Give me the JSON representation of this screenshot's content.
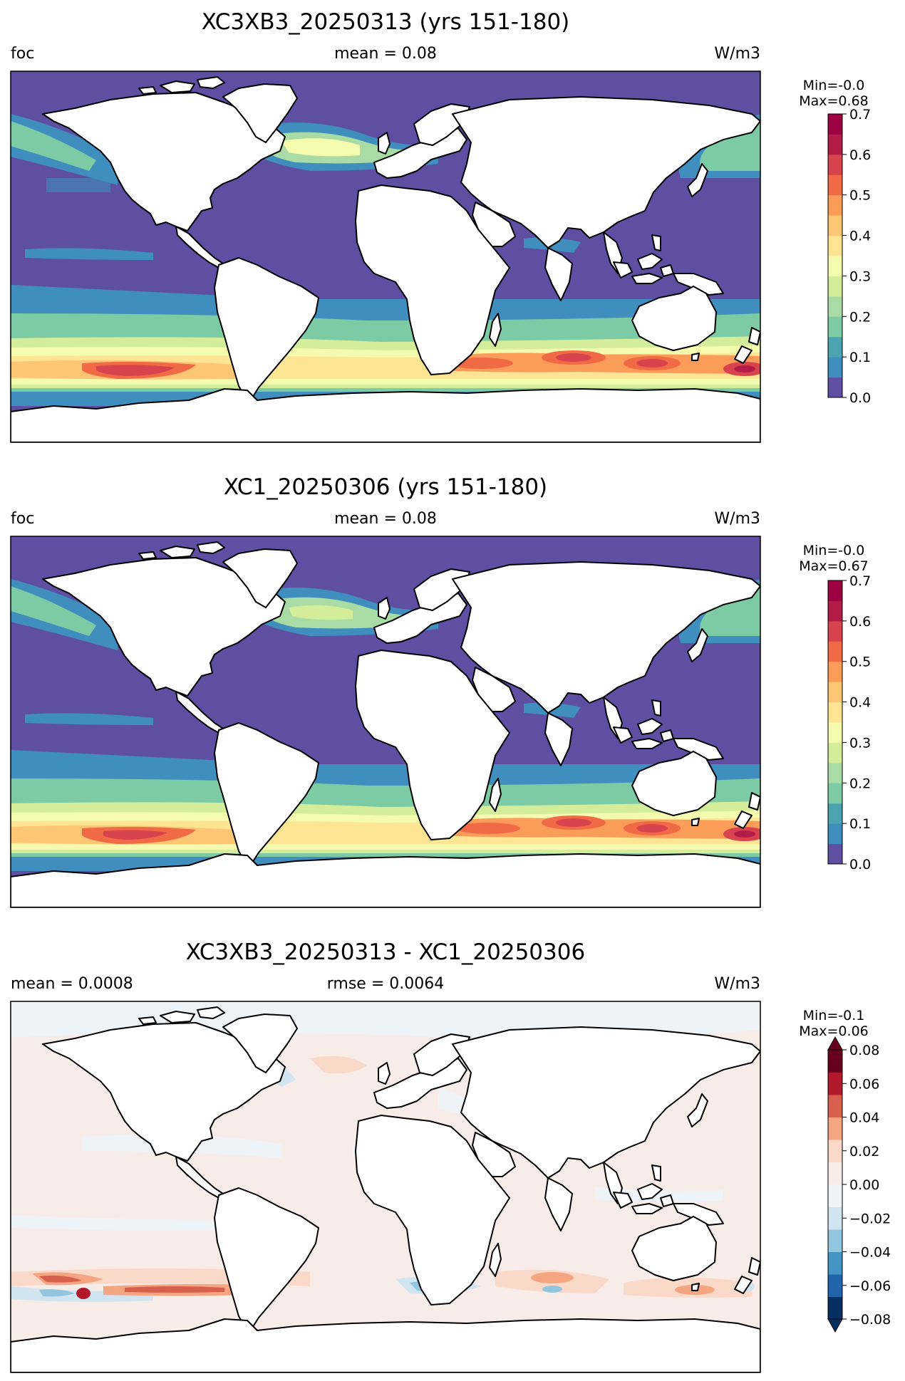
{
  "panels": [
    {
      "title": "XC3XB3_20250313 (yrs 151-180)",
      "left_label": "foc",
      "center_label": "mean = 0.08",
      "right_label": "W/m3",
      "minmax_line1": "Min=-0.0",
      "minmax_line2": "Max=0.68",
      "colorbar": {
        "type": "sequential",
        "ticks": [
          "0.7",
          "0.6",
          "0.5",
          "0.4",
          "0.3",
          "0.2",
          "0.1",
          "0.0"
        ],
        "colors": [
          "#5e4fa2",
          "#3f8ebe",
          "#4ca4b0",
          "#7ccba4",
          "#a9dca4",
          "#d4ed9b",
          "#f4faae",
          "#fee593",
          "#fdc675",
          "#fb9c59",
          "#f06b45",
          "#d8434e",
          "#b41b47",
          "#9e0142"
        ]
      }
    },
    {
      "title": "XC1_20250306 (yrs 151-180)",
      "left_label": "foc",
      "center_label": "mean = 0.08",
      "right_label": "W/m3",
      "minmax_line1": "Min=-0.0",
      "minmax_line2": "Max=0.67",
      "colorbar": {
        "type": "sequential",
        "ticks": [
          "0.7",
          "0.6",
          "0.5",
          "0.4",
          "0.3",
          "0.2",
          "0.1",
          "0.0"
        ],
        "colors": [
          "#5e4fa2",
          "#3f8ebe",
          "#4ca4b0",
          "#7ccba4",
          "#a9dca4",
          "#d4ed9b",
          "#f4faae",
          "#fee593",
          "#fdc675",
          "#fb9c59",
          "#f06b45",
          "#d8434e",
          "#b41b47",
          "#9e0142"
        ]
      }
    },
    {
      "title": "XC3XB3_20250313 - XC1_20250306",
      "left_label": "mean = 0.0008",
      "center_label": "rmse = 0.0064",
      "right_label": "W/m3",
      "minmax_line1": "Min=-0.1",
      "minmax_line2": "Max=0.06",
      "colorbar": {
        "type": "diverging",
        "ticks": [
          "0.08",
          "0.06",
          "0.04",
          "0.02",
          "0.00",
          "−0.02",
          "−0.04",
          "−0.06",
          "−0.08"
        ],
        "colors": [
          "#053061",
          "#2166ac",
          "#4393c3",
          "#92c5de",
          "#d1e5f0",
          "#eef3f7",
          "#f7ece8",
          "#fbd9c9",
          "#f4a582",
          "#d6604d",
          "#b2182b",
          "#67001f"
        ]
      }
    }
  ],
  "palette": {
    "ocean_base": "#5e4fa2",
    "land": "#ffffff",
    "coast": "#000000",
    "diff_base": "#f7ece8"
  }
}
